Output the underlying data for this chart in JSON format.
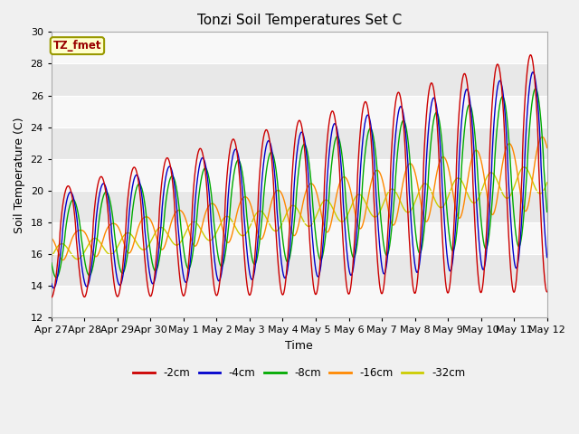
{
  "title": "Tonzi Soil Temperatures Set C",
  "xlabel": "Time",
  "ylabel": "Soil Temperature (C)",
  "ylim": [
    12,
    30
  ],
  "annotation": "TZ_fmet",
  "annotation_color": "#990000",
  "annotation_bg": "#ffffcc",
  "annotation_border": "#999900",
  "series_colors": [
    "#cc0000",
    "#0000cc",
    "#00aa00",
    "#ff8800",
    "#cccc00"
  ],
  "series_labels": [
    "-2cm",
    "-4cm",
    "-8cm",
    "-16cm",
    "-32cm"
  ],
  "bg_light": "#f4f4f4",
  "bg_dark": "#e4e4e4",
  "n_points": 1500,
  "tick_labels": [
    "Apr 27",
    "Apr 28",
    "Apr 29",
    "Apr 30",
    "May 1",
    "May 2",
    "May 3",
    "May 4",
    "May 5",
    "May 6",
    "May 7",
    "May 8",
    "May 9",
    "May 10",
    "May 11",
    "May 12"
  ]
}
